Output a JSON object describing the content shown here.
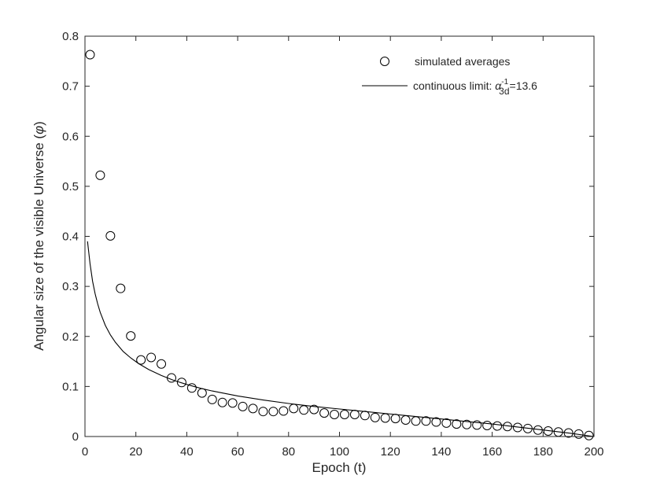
{
  "chart_data": {
    "type": "scatter",
    "xlabel": "Epoch (t)",
    "ylabel": "Angular size of the visible Universe (",
    "ylabel_symbol": "φ",
    "ylabel_close": ")",
    "xlim": [
      0,
      200
    ],
    "ylim": [
      0,
      0.8
    ],
    "xticks": [
      "0",
      "20",
      "40",
      "60",
      "80",
      "100",
      "120",
      "140",
      "160",
      "180",
      "200"
    ],
    "yticks": [
      "0",
      "0.1",
      "0.2",
      "0.3",
      "0.4",
      "0.5",
      "0.6",
      "0.7",
      "0.8"
    ],
    "grid": false,
    "legend_position": "top-right",
    "series": [
      {
        "name": "simulated averages",
        "kind": "markers",
        "marker": "open-circle",
        "color": "#000000",
        "x": [
          2,
          6,
          10,
          14,
          18,
          22,
          26,
          30,
          34,
          38,
          42,
          46,
          50,
          54,
          58,
          62,
          66,
          70,
          74,
          78,
          82,
          86,
          90,
          94,
          98,
          102,
          106,
          110,
          114,
          118,
          122,
          126,
          130,
          134,
          138,
          142,
          146,
          150,
          154,
          158,
          162,
          166,
          170,
          174,
          178,
          182,
          186,
          190,
          194,
          198
        ],
        "y": [
          0.763,
          0.522,
          0.401,
          0.296,
          0.201,
          0.153,
          0.158,
          0.145,
          0.117,
          0.108,
          0.097,
          0.087,
          0.074,
          0.068,
          0.067,
          0.06,
          0.056,
          0.05,
          0.05,
          0.051,
          0.056,
          0.053,
          0.054,
          0.047,
          0.044,
          0.044,
          0.044,
          0.042,
          0.038,
          0.037,
          0.036,
          0.033,
          0.031,
          0.031,
          0.029,
          0.027,
          0.025,
          0.024,
          0.023,
          0.022,
          0.021,
          0.02,
          0.018,
          0.016,
          0.013,
          0.011,
          0.009,
          0.007,
          0.005,
          0.002
        ]
      },
      {
        "name": "continuous limit: ",
        "name_symbol": "α",
        "name_superscript": "-1",
        "name_subscript": "3d",
        "name_value": "=13.6",
        "kind": "line",
        "color": "#000000",
        "x": [
          1,
          2,
          3,
          4,
          5,
          6,
          8,
          10,
          12,
          15,
          18,
          21,
          25,
          30,
          35,
          40,
          45,
          50,
          60,
          70,
          80,
          90,
          100,
          110,
          120,
          130,
          140,
          150,
          160,
          170,
          180,
          190,
          200
        ],
        "y": [
          0.39,
          0.345,
          0.31,
          0.285,
          0.265,
          0.248,
          0.222,
          0.203,
          0.188,
          0.17,
          0.157,
          0.146,
          0.134,
          0.122,
          0.112,
          0.104,
          0.097,
          0.091,
          0.081,
          0.073,
          0.066,
          0.06,
          0.055,
          0.05,
          0.045,
          0.04,
          0.035,
          0.03,
          0.025,
          0.019,
          0.013,
          0.007,
          0.0
        ]
      }
    ]
  }
}
